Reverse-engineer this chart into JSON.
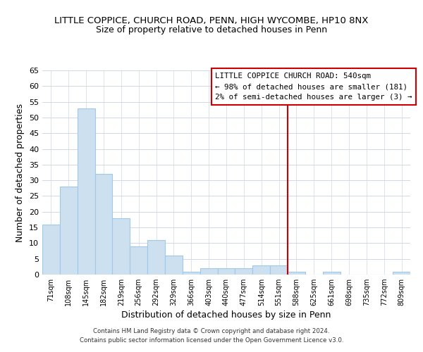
{
  "title": "LITTLE COPPICE, CHURCH ROAD, PENN, HIGH WYCOMBE, HP10 8NX",
  "subtitle": "Size of property relative to detached houses in Penn",
  "xlabel": "Distribution of detached houses by size in Penn",
  "ylabel": "Number of detached properties",
  "bar_labels": [
    "71sqm",
    "108sqm",
    "145sqm",
    "182sqm",
    "219sqm",
    "256sqm",
    "292sqm",
    "329sqm",
    "366sqm",
    "403sqm",
    "440sqm",
    "477sqm",
    "514sqm",
    "551sqm",
    "588sqm",
    "625sqm",
    "661sqm",
    "698sqm",
    "735sqm",
    "772sqm",
    "809sqm"
  ],
  "bar_heights": [
    16,
    28,
    53,
    32,
    18,
    9,
    11,
    6,
    1,
    2,
    2,
    2,
    3,
    3,
    1,
    0,
    1,
    0,
    0,
    0,
    1
  ],
  "bar_color": "#cce0f0",
  "bar_edge_color": "#a0c8e8",
  "ylim": [
    0,
    65
  ],
  "yticks": [
    0,
    5,
    10,
    15,
    20,
    25,
    30,
    35,
    40,
    45,
    50,
    55,
    60,
    65
  ],
  "vline_x": 13.5,
  "vline_color": "#cc0000",
  "annotation_title": "LITTLE COPPICE CHURCH ROAD: 540sqm",
  "annotation_line1": "← 98% of detached houses are smaller (181)",
  "annotation_line2": "2% of semi-detached houses are larger (3) →",
  "footer1": "Contains HM Land Registry data © Crown copyright and database right 2024.",
  "footer2": "Contains public sector information licensed under the Open Government Licence v3.0.",
  "background_color": "#ffffff",
  "grid_color": "#d0d8e8"
}
